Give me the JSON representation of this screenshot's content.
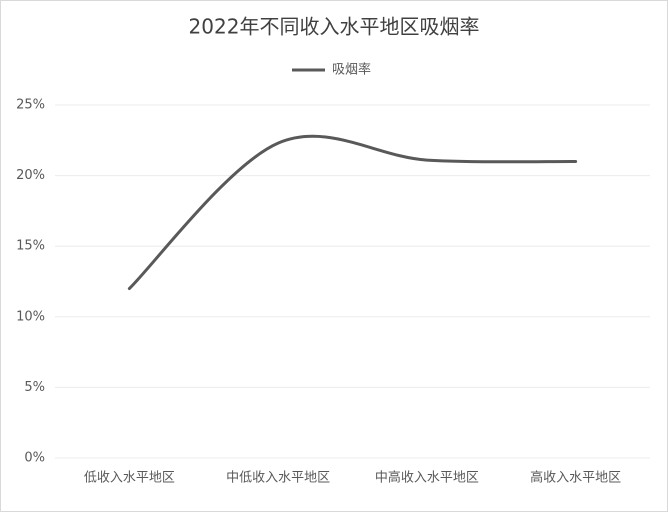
{
  "chart_data": {
    "type": "line",
    "title": "2022年不同收入水平地区吸烟率",
    "categories": [
      "低收入水平地区",
      "中低收入水平地区",
      "中高收入水平地区",
      "高收入水平地区"
    ],
    "series": [
      {
        "name": "吸烟率",
        "color": "#595959",
        "values": [
          12,
          22.3,
          21.1,
          21
        ]
      }
    ],
    "ylim": [
      0,
      25
    ],
    "yticks": [
      {
        "value": 0,
        "label": "0%"
      },
      {
        "value": 5,
        "label": "5%"
      },
      {
        "value": 10,
        "label": "10%"
      },
      {
        "value": 15,
        "label": "15%"
      },
      {
        "value": 20,
        "label": "20%"
      },
      {
        "value": 25,
        "label": "25%"
      }
    ],
    "grid": true,
    "smooth": true,
    "legend": "top"
  }
}
